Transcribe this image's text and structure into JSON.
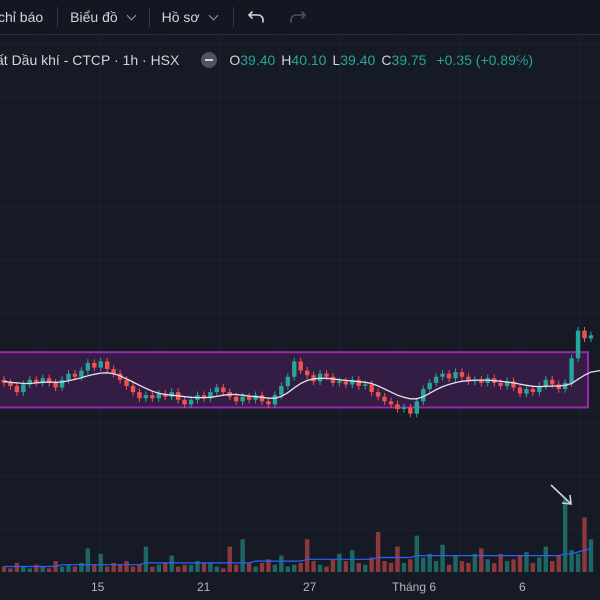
{
  "toolbar": {
    "indicators_label": "chỉ báo",
    "chart_label": "Biểu đồ",
    "profile_label": "Hồ sơ"
  },
  "legend": {
    "symbol_title": "ất Dầu khí - CTCP · 1h · HSX",
    "open_label": "O",
    "open_value": "39.40",
    "high_label": "H",
    "high_value": "40.10",
    "low_label": "L",
    "low_value": "39.40",
    "close_label": "C",
    "close_value": "39.75",
    "change": "+0.35 (+0.89%)"
  },
  "x_axis_labels": [
    "15",
    "21",
    "27",
    "Tháng 6",
    "6"
  ],
  "colors": {
    "background": "#161a25",
    "up": "#26a69a",
    "down": "#ef5350",
    "range_box_border": "#9c27b0",
    "range_box_fill": "#3a1f4a",
    "moving_average": "#e0e3eb",
    "volume_ma": "#2962ff"
  },
  "icons": [
    "undo-icon",
    "redo-icon",
    "chevron-down-icon",
    "minus-icon",
    "arrow-down-right-icon"
  ],
  "chart_data": {
    "type": "candlestick",
    "ylim": [
      37.3,
      41.6
    ],
    "range_box": {
      "top": 39.9,
      "bottom": 38.1
    },
    "candles": [
      {
        "o": 39.0,
        "c": 38.9
      },
      {
        "o": 38.9,
        "c": 38.8
      },
      {
        "o": 38.8,
        "c": 38.6
      },
      {
        "o": 38.6,
        "c": 38.85
      },
      {
        "o": 38.85,
        "c": 39.0
      },
      {
        "o": 39.0,
        "c": 38.9
      },
      {
        "o": 38.9,
        "c": 39.05
      },
      {
        "o": 39.05,
        "c": 38.9
      },
      {
        "o": 38.9,
        "c": 38.75
      },
      {
        "o": 38.75,
        "c": 39.0
      },
      {
        "o": 39.0,
        "c": 39.2
      },
      {
        "o": 39.2,
        "c": 39.1
      },
      {
        "o": 39.1,
        "c": 39.3
      },
      {
        "o": 39.3,
        "c": 39.55
      },
      {
        "o": 39.55,
        "c": 39.4
      },
      {
        "o": 39.4,
        "c": 39.6
      },
      {
        "o": 39.6,
        "c": 39.35
      },
      {
        "o": 39.35,
        "c": 39.2
      },
      {
        "o": 39.2,
        "c": 39.0
      },
      {
        "o": 39.0,
        "c": 38.8
      },
      {
        "o": 38.8,
        "c": 38.6
      },
      {
        "o": 38.6,
        "c": 38.4
      },
      {
        "o": 38.4,
        "c": 38.5
      },
      {
        "o": 38.5,
        "c": 38.4
      },
      {
        "o": 38.4,
        "c": 38.55
      },
      {
        "o": 38.55,
        "c": 38.45
      },
      {
        "o": 38.45,
        "c": 38.6
      },
      {
        "o": 38.6,
        "c": 38.35
      },
      {
        "o": 38.35,
        "c": 38.2
      },
      {
        "o": 38.2,
        "c": 38.35
      },
      {
        "o": 38.35,
        "c": 38.5
      },
      {
        "o": 38.5,
        "c": 38.4
      },
      {
        "o": 38.4,
        "c": 38.6
      },
      {
        "o": 38.6,
        "c": 38.75
      },
      {
        "o": 38.75,
        "c": 38.6
      },
      {
        "o": 38.6,
        "c": 38.45
      },
      {
        "o": 38.45,
        "c": 38.3
      },
      {
        "o": 38.3,
        "c": 38.45
      },
      {
        "o": 38.45,
        "c": 38.35
      },
      {
        "o": 38.35,
        "c": 38.5
      },
      {
        "o": 38.5,
        "c": 38.3
      },
      {
        "o": 38.3,
        "c": 38.2
      },
      {
        "o": 38.2,
        "c": 38.5
      },
      {
        "o": 38.5,
        "c": 38.8
      },
      {
        "o": 38.8,
        "c": 39.1
      },
      {
        "o": 39.1,
        "c": 39.6
      },
      {
        "o": 39.6,
        "c": 39.3
      },
      {
        "o": 39.3,
        "c": 39.15
      },
      {
        "o": 39.15,
        "c": 38.95
      },
      {
        "o": 38.95,
        "c": 39.2
      },
      {
        "o": 39.2,
        "c": 39.1
      },
      {
        "o": 39.1,
        "c": 38.9
      },
      {
        "o": 38.9,
        "c": 38.95
      },
      {
        "o": 38.95,
        "c": 38.85
      },
      {
        "o": 38.85,
        "c": 39.0
      },
      {
        "o": 39.0,
        "c": 38.8
      },
      {
        "o": 38.8,
        "c": 38.85
      },
      {
        "o": 38.85,
        "c": 38.6
      },
      {
        "o": 38.6,
        "c": 38.45
      },
      {
        "o": 38.45,
        "c": 38.3
      },
      {
        "o": 38.3,
        "c": 38.2
      },
      {
        "o": 38.2,
        "c": 38.05
      },
      {
        "o": 38.05,
        "c": 38.1
      },
      {
        "o": 38.1,
        "c": 37.9
      },
      {
        "o": 37.9,
        "c": 38.3
      },
      {
        "o": 38.3,
        "c": 38.7
      },
      {
        "o": 38.7,
        "c": 38.9
      },
      {
        "o": 38.9,
        "c": 39.1
      },
      {
        "o": 39.1,
        "c": 39.2
      },
      {
        "o": 39.2,
        "c": 39.05
      },
      {
        "o": 39.05,
        "c": 39.25
      },
      {
        "o": 39.25,
        "c": 39.1
      },
      {
        "o": 39.1,
        "c": 38.95
      },
      {
        "o": 38.95,
        "c": 39.0
      },
      {
        "o": 39.0,
        "c": 38.9
      },
      {
        "o": 38.9,
        "c": 39.05
      },
      {
        "o": 39.05,
        "c": 38.9
      },
      {
        "o": 38.9,
        "c": 38.8
      },
      {
        "o": 38.8,
        "c": 38.95
      },
      {
        "o": 38.95,
        "c": 38.75
      },
      {
        "o": 38.75,
        "c": 38.55
      },
      {
        "o": 38.55,
        "c": 38.7
      },
      {
        "o": 38.7,
        "c": 38.6
      },
      {
        "o": 38.6,
        "c": 38.8
      },
      {
        "o": 38.8,
        "c": 39.0
      },
      {
        "o": 39.0,
        "c": 38.85
      },
      {
        "o": 38.85,
        "c": 38.7
      },
      {
        "o": 38.7,
        "c": 38.9
      },
      {
        "o": 38.9,
        "c": 39.7
      },
      {
        "o": 39.7,
        "c": 40.6
      },
      {
        "o": 40.6,
        "c": 40.35
      },
      {
        "o": 40.35,
        "c": 40.45
      }
    ],
    "ma": [
      38.95,
      38.92,
      38.9,
      38.88,
      38.88,
      38.9,
      38.92,
      38.93,
      38.92,
      38.93,
      38.97,
      39.02,
      39.07,
      39.13,
      39.18,
      39.22,
      39.23,
      39.2,
      39.13,
      39.03,
      38.93,
      38.82,
      38.72,
      38.63,
      38.56,
      38.52,
      38.5,
      38.48,
      38.45,
      38.43,
      38.42,
      38.42,
      38.43,
      38.46,
      38.5,
      38.52,
      38.52,
      38.5,
      38.47,
      38.45,
      38.43,
      38.4,
      38.4,
      38.46,
      38.58,
      38.74,
      38.88,
      38.98,
      39.03,
      39.05,
      39.05,
      39.03,
      39.0,
      38.98,
      38.96,
      38.94,
      38.92,
      38.88,
      38.8,
      38.7,
      38.6,
      38.5,
      38.43,
      38.38,
      38.38,
      38.45,
      38.56,
      38.68,
      38.78,
      38.85,
      38.91,
      38.95,
      38.97,
      38.99,
      38.99,
      38.99,
      38.97,
      38.95,
      38.93,
      38.9,
      38.86,
      38.82,
      38.79,
      38.78,
      38.79,
      38.8,
      38.8,
      38.82,
      38.88,
      39.02,
      39.15,
      39.25
    ],
    "volume": [
      3,
      2,
      5,
      3,
      2,
      4,
      3,
      2,
      6,
      3,
      4,
      3,
      5,
      13,
      4,
      10,
      3,
      5,
      4,
      6,
      3,
      4,
      14,
      3,
      4,
      5,
      9,
      3,
      4,
      4,
      6,
      5,
      5,
      3,
      2,
      14,
      4,
      18,
      5,
      3,
      5,
      7,
      4,
      9,
      3,
      4,
      5,
      18,
      6,
      4,
      3,
      7,
      10,
      6,
      12,
      5,
      4,
      8,
      22,
      6,
      5,
      14,
      5,
      7,
      20,
      8,
      10,
      6,
      15,
      4,
      9,
      6,
      5,
      10,
      13,
      7,
      5,
      10,
      6,
      7,
      9,
      11,
      5,
      8,
      14,
      6,
      9,
      40,
      12,
      10,
      30,
      18
    ],
    "vol_ma": [
      3,
      3,
      3,
      3,
      3,
      3,
      3,
      3,
      3,
      4,
      4,
      4,
      4,
      4,
      4,
      4,
      4,
      4,
      4,
      4,
      4,
      4,
      5,
      5,
      5,
      5,
      5,
      5,
      5,
      5,
      5,
      5,
      5,
      5,
      5,
      5,
      5,
      5,
      5,
      6,
      6,
      6,
      6,
      6,
      6,
      6,
      6,
      7,
      7,
      7,
      7,
      7,
      7,
      7,
      7,
      7,
      7,
      7,
      8,
      8,
      8,
      8,
      8,
      8,
      9,
      9,
      9,
      9,
      9,
      9,
      9,
      9,
      9,
      9,
      9,
      9,
      9,
      9,
      9,
      9,
      9,
      9,
      9,
      9,
      9,
      9,
      9,
      10,
      10,
      11,
      12,
      13
    ],
    "vol_max": 44
  }
}
